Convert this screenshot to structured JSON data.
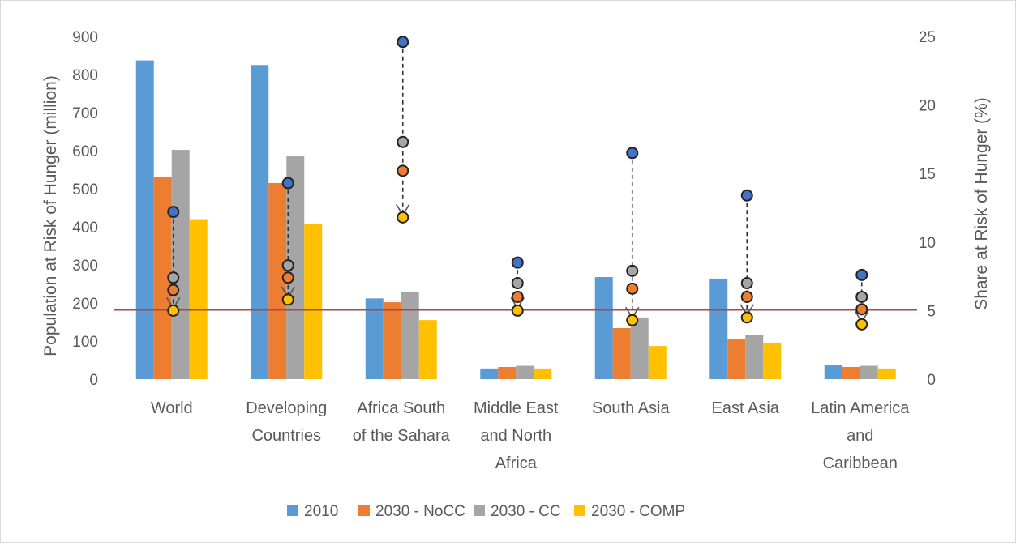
{
  "chart_data": {
    "type": "bar",
    "title": "",
    "ylabel": "Population at Risk of Hunger (million)",
    "y2label": "Share at Risk of Hunger (%)",
    "ylim": [
      0,
      900
    ],
    "y2lim": [
      0,
      25
    ],
    "yticks": [
      0,
      100,
      200,
      300,
      400,
      500,
      600,
      700,
      800,
      900
    ],
    "y2ticks": [
      0,
      5,
      10,
      15,
      20,
      25
    ],
    "grid": false,
    "legend_position": "bottom",
    "categories": [
      [
        "World"
      ],
      [
        "Developing",
        "Countries"
      ],
      [
        "Africa South",
        "of the Sahara"
      ],
      [
        "Middle East",
        "and North",
        "Africa"
      ],
      [
        "South Asia"
      ],
      [
        "East Asia"
      ],
      [
        "Latin America",
        "and",
        "Caribbean"
      ]
    ],
    "series": [
      {
        "name": "2010",
        "color": "#5b9bd5",
        "values": [
          837,
          825,
          212,
          28,
          268,
          264,
          38
        ]
      },
      {
        "name": "2030 - NoCC",
        "color": "#ed7d31",
        "values": [
          530,
          515,
          202,
          32,
          134,
          106,
          32
        ]
      },
      {
        "name": "2030 - CC",
        "color": "#a5a5a5",
        "values": [
          602,
          585,
          230,
          35,
          162,
          116,
          35
        ]
      },
      {
        "name": "2030 - COMP",
        "color": "#ffc000",
        "values": [
          420,
          407,
          155,
          28,
          87,
          96,
          28
        ]
      }
    ],
    "share_percent": {
      "axis": "secondary",
      "values_2010": [
        12.2,
        14.3,
        24.6,
        8.5,
        16.5,
        13.4,
        7.6
      ],
      "values_2030_nocc": [
        6.5,
        7.4,
        15.2,
        6.0,
        6.6,
        6.0,
        5.1
      ],
      "values_2030_cc": [
        7.4,
        8.3,
        17.3,
        7.0,
        7.9,
        7.0,
        6.0
      ],
      "values_2030_comp": [
        5.0,
        5.8,
        11.8,
        5.0,
        4.3,
        4.5,
        4.0
      ]
    },
    "reference_line": {
      "axis": "primary",
      "value": 182,
      "color": "#a94a4a"
    }
  }
}
